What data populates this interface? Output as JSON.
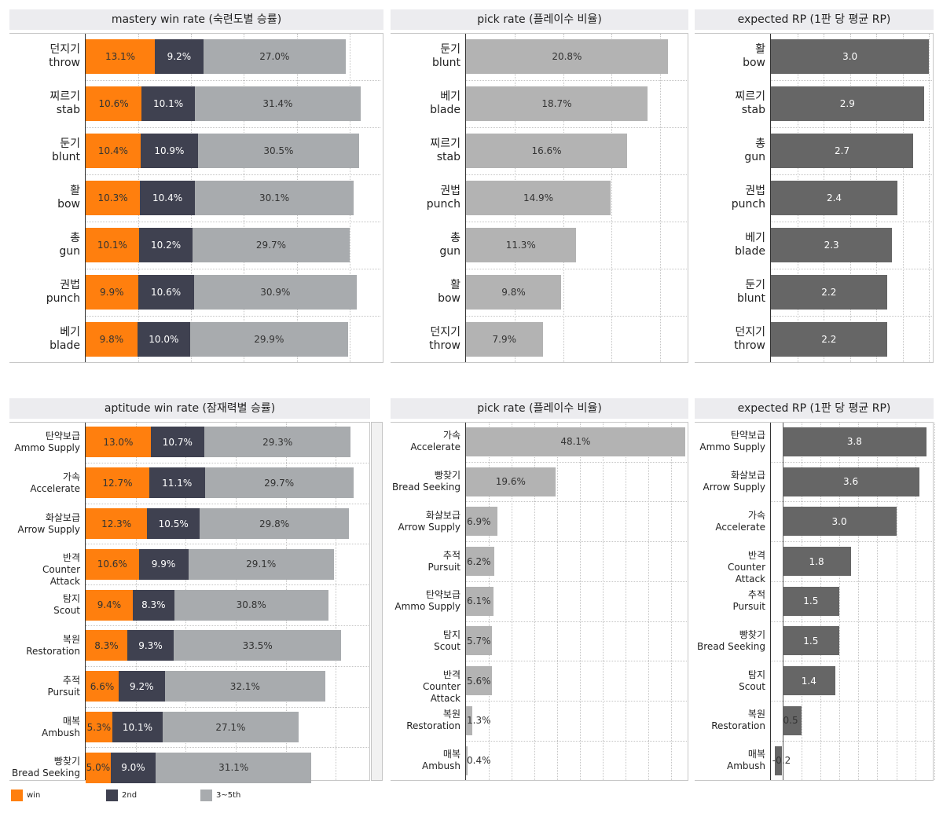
{
  "colors": {
    "win": "#ff7f0e",
    "second": "#3f4150",
    "third": "#a8abae",
    "pick": "#b3b3b3",
    "rp": "#666666"
  },
  "legend": [
    {
      "name": "win",
      "color": "#ff7f0e"
    },
    {
      "name": "2nd",
      "color": "#3f4150"
    },
    {
      "name": "3~5th",
      "color": "#a8abae"
    }
  ],
  "chart_data": [
    {
      "id": "mastery-win",
      "type": "bar",
      "stacked": true,
      "title": "mastery win rate (숙련도별 승률)",
      "categories": [
        {
          "kr": "던지기",
          "en": "throw"
        },
        {
          "kr": "찌르기",
          "en": "stab"
        },
        {
          "kr": "둔기",
          "en": "blunt"
        },
        {
          "kr": "활",
          "en": "bow"
        },
        {
          "kr": "총",
          "en": "gun"
        },
        {
          "kr": "권법",
          "en": "punch"
        },
        {
          "kr": "베기",
          "en": "blade"
        }
      ],
      "series": [
        {
          "name": "win",
          "values": [
            13.1,
            10.6,
            10.4,
            10.3,
            10.1,
            9.9,
            9.8
          ],
          "labels": [
            "13.1%",
            "10.6%",
            "10.4%",
            "10.3%",
            "10.1%",
            "9.9%",
            "9.8%"
          ]
        },
        {
          "name": "2nd",
          "values": [
            9.2,
            10.1,
            10.9,
            10.4,
            10.2,
            10.6,
            10.0
          ],
          "labels": [
            "9.2%",
            "10.1%",
            "10.9%",
            "10.4%",
            "10.2%",
            "10.6%",
            "10.0%"
          ]
        },
        {
          "name": "3~5th",
          "values": [
            27.0,
            31.4,
            30.5,
            30.1,
            29.7,
            30.9,
            29.9
          ],
          "labels": [
            "27.0%",
            "31.4%",
            "30.5%",
            "30.1%",
            "29.7%",
            "30.9%",
            "29.9%"
          ]
        }
      ],
      "xlim": [
        0,
        56
      ],
      "grid": true
    },
    {
      "id": "mastery-pick",
      "type": "bar",
      "title": "pick rate (플레이수 비율)",
      "categories": [
        {
          "kr": "둔기",
          "en": "blunt"
        },
        {
          "kr": "베기",
          "en": "blade"
        },
        {
          "kr": "찌르기",
          "en": "stab"
        },
        {
          "kr": "권법",
          "en": "punch"
        },
        {
          "kr": "총",
          "en": "gun"
        },
        {
          "kr": "활",
          "en": "bow"
        },
        {
          "kr": "던지기",
          "en": "throw"
        }
      ],
      "values": [
        20.8,
        18.7,
        16.6,
        14.9,
        11.3,
        9.8,
        7.9
      ],
      "labels": [
        "20.8%",
        "18.7%",
        "16.6%",
        "14.9%",
        "11.3%",
        "9.8%",
        "7.9%"
      ],
      "xlim": [
        0,
        23
      ],
      "grid": true
    },
    {
      "id": "mastery-rp",
      "type": "bar",
      "title": "expected RP (1판 당 평균 RP)",
      "categories": [
        {
          "kr": "활",
          "en": "bow"
        },
        {
          "kr": "찌르기",
          "en": "stab"
        },
        {
          "kr": "총",
          "en": "gun"
        },
        {
          "kr": "권법",
          "en": "punch"
        },
        {
          "kr": "베기",
          "en": "blade"
        },
        {
          "kr": "둔기",
          "en": "blunt"
        },
        {
          "kr": "던지기",
          "en": "throw"
        }
      ],
      "values": [
        3.0,
        2.9,
        2.7,
        2.4,
        2.3,
        2.2,
        2.2
      ],
      "labels": [
        "3.0",
        "2.9",
        "2.7",
        "2.4",
        "2.3",
        "2.2",
        "2.2"
      ],
      "xlim": [
        0,
        3.1
      ],
      "grid": true
    },
    {
      "id": "aptitude-win",
      "type": "bar",
      "stacked": true,
      "title": "aptitude win rate (잠재력별 승률)",
      "categories": [
        {
          "kr": "탄약보급",
          "en": "Ammo Supply"
        },
        {
          "kr": "가속",
          "en": "Accelerate"
        },
        {
          "kr": "화살보급",
          "en": "Arrow Supply"
        },
        {
          "kr": "반격",
          "en": "Counter Attack"
        },
        {
          "kr": "탐지",
          "en": "Scout"
        },
        {
          "kr": "복원",
          "en": "Restoration"
        },
        {
          "kr": "추적",
          "en": "Pursuit"
        },
        {
          "kr": "매복",
          "en": "Ambush"
        },
        {
          "kr": "빵찾기",
          "en": "Bread Seeking"
        }
      ],
      "series": [
        {
          "name": "win",
          "values": [
            13.0,
            12.7,
            12.3,
            10.6,
            9.4,
            8.3,
            6.6,
            5.3,
            5.0
          ],
          "labels": [
            "13.0%",
            "12.7%",
            "12.3%",
            "10.6%",
            "9.4%",
            "8.3%",
            "6.6%",
            "5.3%",
            "5.0%"
          ]
        },
        {
          "name": "2nd",
          "values": [
            10.7,
            11.1,
            10.5,
            9.9,
            8.3,
            9.3,
            9.2,
            10.1,
            9.0
          ],
          "labels": [
            "10.7%",
            "11.1%",
            "10.5%",
            "9.9%",
            "8.3%",
            "9.3%",
            "9.2%",
            "10.1%",
            "9.0%"
          ]
        },
        {
          "name": "3~5th",
          "values": [
            29.3,
            29.7,
            29.8,
            29.1,
            30.8,
            33.5,
            32.1,
            27.1,
            31.1
          ],
          "labels": [
            "29.3%",
            "29.7%",
            "29.8%",
            "29.1%",
            "30.8%",
            "33.5%",
            "32.1%",
            "27.1%",
            "31.1%"
          ]
        }
      ],
      "xlim": [
        0,
        57
      ],
      "grid": true
    },
    {
      "id": "aptitude-pick",
      "type": "bar",
      "title": "pick rate (플레이수 비율)",
      "categories": [
        {
          "kr": "가속",
          "en": "Accelerate"
        },
        {
          "kr": "빵찾기",
          "en": "Bread Seeking"
        },
        {
          "kr": "화살보급",
          "en": "Arrow Supply"
        },
        {
          "kr": "추적",
          "en": "Pursuit"
        },
        {
          "kr": "탄약보급",
          "en": "Ammo Supply"
        },
        {
          "kr": "탐지",
          "en": "Scout"
        },
        {
          "kr": "반격",
          "en": "Counter Attack"
        },
        {
          "kr": "복원",
          "en": "Restoration"
        },
        {
          "kr": "매복",
          "en": "Ambush"
        }
      ],
      "values": [
        48.1,
        19.6,
        6.9,
        6.2,
        6.1,
        5.7,
        5.6,
        1.3,
        0.4
      ],
      "labels": [
        "48.1%",
        "19.6%",
        "6.9%",
        "6.2%",
        "6.1%",
        "5.7%",
        "5.6%",
        "1.3%",
        "0.4%"
      ],
      "xlim": [
        0,
        49
      ],
      "grid": true
    },
    {
      "id": "aptitude-rp",
      "type": "bar",
      "title": "expected RP (1판 당 평균 RP)",
      "categories": [
        {
          "kr": "탄약보급",
          "en": "Ammo Supply"
        },
        {
          "kr": "화살보급",
          "en": "Arrow Supply"
        },
        {
          "kr": "가속",
          "en": "Accelerate"
        },
        {
          "kr": "반격",
          "en": "Counter Attack"
        },
        {
          "kr": "추적",
          "en": "Pursuit"
        },
        {
          "kr": "빵찾기",
          "en": "Bread Seeking"
        },
        {
          "kr": "탐지",
          "en": "Scout"
        },
        {
          "kr": "복원",
          "en": "Restoration"
        },
        {
          "kr": "매복",
          "en": "Ambush"
        }
      ],
      "values": [
        3.8,
        3.6,
        3.0,
        1.8,
        1.5,
        1.5,
        1.4,
        0.5,
        -0.2
      ],
      "labels": [
        "3.8",
        "3.6",
        "3.0",
        "1.8",
        "1.5",
        "1.5",
        "1.4",
        "0.5",
        "-0.2"
      ],
      "xlim": [
        -0.3,
        4.0
      ],
      "grid": true
    }
  ]
}
